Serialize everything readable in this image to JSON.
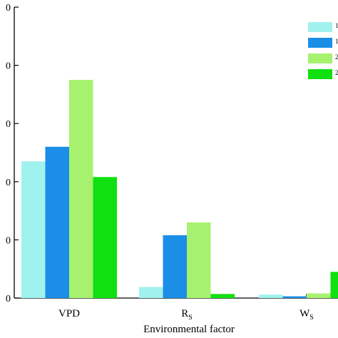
{
  "chart_data": {
    "type": "bar",
    "xlabel": "Environmental factor",
    "categories": [
      {
        "main": "VPD",
        "sub": ""
      },
      {
        "main": "R",
        "sub": "S"
      },
      {
        "main": "W",
        "sub": "S"
      }
    ],
    "yticks": [
      {
        "value": 0,
        "label": "0"
      },
      {
        "value": 1,
        "label": "0"
      },
      {
        "value": 2,
        "label": "0"
      },
      {
        "value": 3,
        "label": "0"
      },
      {
        "value": 4,
        "label": "0"
      },
      {
        "value": 5,
        "label": "0"
      }
    ],
    "ylim": [
      0,
      5
    ],
    "series": [
      {
        "color": "#9ff2ee",
        "legend_label": "1",
        "values": [
          2.35,
          0.19,
          0.06
        ]
      },
      {
        "color": "#1b8ee8",
        "legend_label": "1",
        "values": [
          2.6,
          1.08,
          0.03
        ]
      },
      {
        "color": "#a6f26e",
        "legend_label": "2",
        "values": [
          3.75,
          1.3,
          0.08
        ]
      },
      {
        "color": "#10e010",
        "legend_label": "2",
        "values": [
          2.08,
          0.07,
          0.45
        ]
      }
    ],
    "legend_position": "top-right",
    "grid": false
  }
}
